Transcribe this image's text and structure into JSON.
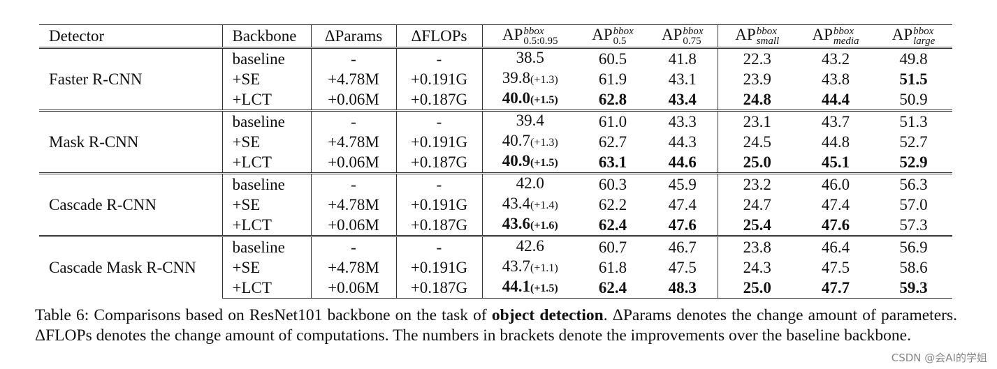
{
  "table": {
    "headers": {
      "detector": "Detector",
      "backbone": "Backbone",
      "params": "ΔParams",
      "flops": "ΔFLOPs",
      "ap_base": "AP",
      "ap_cols": [
        {
          "sup": "bbox",
          "sub": "0.5:0.95"
        },
        {
          "sup": "bbox",
          "sub": "0.5"
        },
        {
          "sup": "bbox",
          "sub": "0.75"
        },
        {
          "sup": "bbox",
          "sub": "small"
        },
        {
          "sup": "bbox",
          "sub": "media"
        },
        {
          "sup": "bbox",
          "sub": "large"
        }
      ]
    },
    "groups": [
      {
        "detector": "Faster R-CNN",
        "rows": [
          {
            "backbone": "baseline",
            "params": "-",
            "flops": "-",
            "ap": "38.5",
            "imp": "",
            "ap50": "60.5",
            "ap75": "41.8",
            "aps": "22.3",
            "apm": "43.2",
            "apl": "49.8"
          },
          {
            "backbone": "+SE",
            "params": "+4.78M",
            "flops": "+0.191G",
            "ap": "39.8",
            "imp": "(+1.3)",
            "ap50": "61.9",
            "ap75": "43.1",
            "aps": "23.9",
            "apm": "43.8",
            "apl": "51.5"
          },
          {
            "backbone": "+LCT",
            "params": "+0.06M",
            "flops": "+0.187G",
            "ap": "40.0",
            "imp": "(+1.5)",
            "ap50": "62.8",
            "ap75": "43.4",
            "aps": "24.8",
            "apm": "44.4",
            "apl": "50.9"
          }
        ]
      },
      {
        "detector": "Mask R-CNN",
        "rows": [
          {
            "backbone": "baseline",
            "params": "-",
            "flops": "-",
            "ap": "39.4",
            "imp": "",
            "ap50": "61.0",
            "ap75": "43.3",
            "aps": "23.1",
            "apm": "43.7",
            "apl": "51.3"
          },
          {
            "backbone": "+SE",
            "params": "+4.78M",
            "flops": "+0.191G",
            "ap": "40.7",
            "imp": "(+1.3)",
            "ap50": "62.7",
            "ap75": "44.3",
            "aps": "24.5",
            "apm": "44.8",
            "apl": "52.7"
          },
          {
            "backbone": "+LCT",
            "params": "+0.06M",
            "flops": "+0.187G",
            "ap": "40.9",
            "imp": "(+1.5)",
            "ap50": "63.1",
            "ap75": "44.6",
            "aps": "25.0",
            "apm": "45.1",
            "apl": "52.9"
          }
        ]
      },
      {
        "detector": "Cascade R-CNN",
        "rows": [
          {
            "backbone": "baseline",
            "params": "-",
            "flops": "-",
            "ap": "42.0",
            "imp": "",
            "ap50": "60.3",
            "ap75": "45.9",
            "aps": "23.2",
            "apm": "46.0",
            "apl": "56.3"
          },
          {
            "backbone": "+SE",
            "params": "+4.78M",
            "flops": "+0.191G",
            "ap": "43.4",
            "imp": "(+1.4)",
            "ap50": "62.2",
            "ap75": "47.4",
            "aps": "24.7",
            "apm": "47.4",
            "apl": "57.0"
          },
          {
            "backbone": "+LCT",
            "params": "+0.06M",
            "flops": "+0.187G",
            "ap": "43.6",
            "imp": "(+1.6)",
            "ap50": "62.4",
            "ap75": "47.6",
            "aps": "25.4",
            "apm": "47.6",
            "apl": "57.3"
          }
        ]
      },
      {
        "detector": "Cascade Mask R-CNN",
        "rows": [
          {
            "backbone": "baseline",
            "params": "-",
            "flops": "-",
            "ap": "42.6",
            "imp": "",
            "ap50": "60.7",
            "ap75": "46.7",
            "aps": "23.8",
            "apm": "46.4",
            "apl": "56.9"
          },
          {
            "backbone": "+SE",
            "params": "+4.78M",
            "flops": "+0.191G",
            "ap": "43.7",
            "imp": "(+1.1)",
            "ap50": "61.8",
            "ap75": "47.5",
            "aps": "24.3",
            "apm": "47.5",
            "apl": "58.6"
          },
          {
            "backbone": "+LCT",
            "params": "+0.06M",
            "flops": "+0.187G",
            "ap": "44.1",
            "imp": "(+1.5)",
            "ap50": "62.4",
            "ap75": "48.3",
            "aps": "25.0",
            "apm": "47.7",
            "apl": "59.3"
          }
        ]
      }
    ],
    "bold_cells": [
      [
        0,
        1,
        "apl"
      ],
      [
        0,
        2,
        "ap"
      ],
      [
        0,
        2,
        "ap50"
      ],
      [
        0,
        2,
        "ap75"
      ],
      [
        0,
        2,
        "aps"
      ],
      [
        0,
        2,
        "apm"
      ],
      [
        1,
        2,
        "ap"
      ],
      [
        1,
        2,
        "ap50"
      ],
      [
        1,
        2,
        "ap75"
      ],
      [
        1,
        2,
        "aps"
      ],
      [
        1,
        2,
        "apm"
      ],
      [
        1,
        2,
        "apl"
      ],
      [
        2,
        2,
        "ap"
      ],
      [
        2,
        2,
        "ap50"
      ],
      [
        2,
        2,
        "ap75"
      ],
      [
        2,
        2,
        "aps"
      ],
      [
        2,
        2,
        "apm"
      ],
      [
        3,
        2,
        "ap"
      ],
      [
        3,
        2,
        "ap50"
      ],
      [
        3,
        2,
        "ap75"
      ],
      [
        3,
        2,
        "aps"
      ],
      [
        3,
        2,
        "apm"
      ],
      [
        3,
        2,
        "apl"
      ]
    ]
  },
  "caption": {
    "prefix": "Table 6: Comparisons based on ResNet101 backbone on the task of ",
    "bold": "object detection",
    "suffix": ". ΔParams denotes the change amount of parameters. ΔFLOPs denotes the change amount of computations. The numbers in brackets denote the improvements over the baseline backbone."
  },
  "watermark": "CSDN @会AI的学姐"
}
